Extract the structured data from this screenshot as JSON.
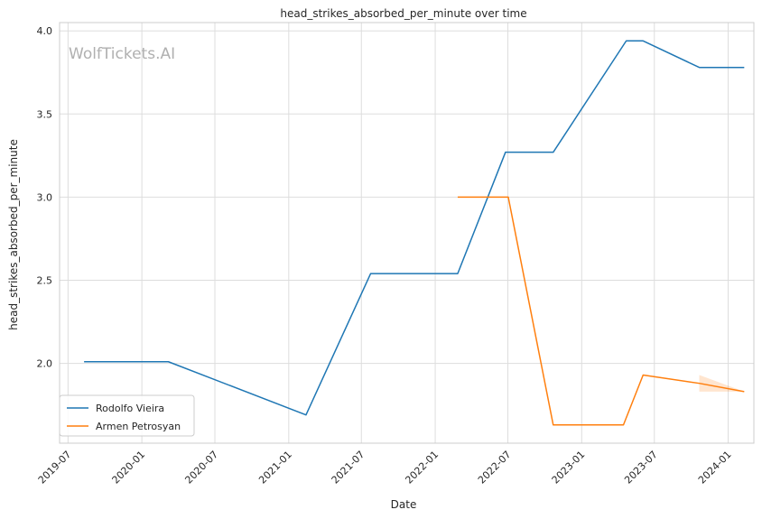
{
  "chart_data": {
    "type": "line",
    "title": "head_strikes_absorbed_per_minute over time",
    "xlabel": "Date",
    "ylabel": "head_strikes_absorbed_per_minute",
    "watermark": "WolfTickets.AI",
    "x_ticks": [
      "2019-07",
      "2020-01",
      "2020-07",
      "2021-01",
      "2021-07",
      "2022-01",
      "2022-07",
      "2023-01",
      "2023-07",
      "2024-01"
    ],
    "y_ticks": [
      "2.0",
      "2.5",
      "3.0",
      "3.5",
      "4.0"
    ],
    "xlim": [
      "2019-06-10",
      "2024-03-05"
    ],
    "ylim": [
      1.52,
      4.05
    ],
    "grid": true,
    "legend_position": "lower-left",
    "series": [
      {
        "name": "Rodolfo Vieira",
        "color": "#1f77b4",
        "points": [
          [
            "2019-08-10",
            2.01
          ],
          [
            "2020-03-07",
            2.01
          ],
          [
            "2021-02-13",
            1.69
          ],
          [
            "2021-07-24",
            2.54
          ],
          [
            "2022-02-26",
            2.54
          ],
          [
            "2022-06-25",
            3.27
          ],
          [
            "2022-10-22",
            3.27
          ],
          [
            "2023-04-22",
            3.94
          ],
          [
            "2023-06-03",
            3.94
          ],
          [
            "2023-10-21",
            3.78
          ],
          [
            "2024-02-10",
            3.78
          ]
        ]
      },
      {
        "name": "Armen Petrosyan",
        "color": "#ff7f0e",
        "points": [
          [
            "2022-02-26",
            3.0
          ],
          [
            "2022-07-02",
            3.0
          ],
          [
            "2022-10-22",
            1.63
          ],
          [
            "2023-04-15",
            1.63
          ],
          [
            "2023-06-03",
            1.93
          ],
          [
            "2023-10-21",
            1.88
          ],
          [
            "2024-02-10",
            1.83
          ]
        ],
        "confidence_band": {
          "x": [
            "2023-10-21",
            "2024-02-10"
          ],
          "lower": [
            1.83,
            1.83
          ],
          "upper": [
            1.93,
            1.83
          ]
        }
      }
    ]
  }
}
